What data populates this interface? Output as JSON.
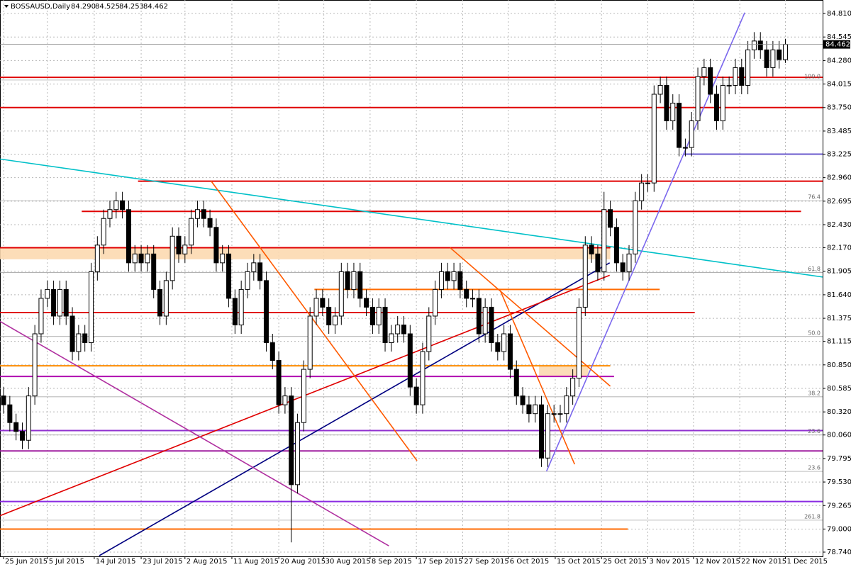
{
  "chart_data": {
    "type": "candlestick",
    "title": "BOSSAUSD,Daily",
    "open": [
      80.5,
      80.4,
      80.2,
      80.1,
      80.0,
      80.5,
      81.2,
      81.6,
      81.7,
      81.4,
      81.7,
      81.4,
      81.0,
      81.2,
      81.1,
      81.9,
      82.2,
      82.5,
      82.6,
      82.7,
      82.6,
      82.0,
      82.1,
      82.0,
      82.1,
      81.7,
      81.4,
      81.8,
      82.3,
      82.1,
      82.2,
      82.5,
      82.6,
      82.5,
      82.4,
      82.0,
      82.1,
      81.6,
      81.3,
      81.7,
      81.9,
      82.0,
      81.8,
      81.1,
      80.9,
      80.4,
      80.5,
      79.5,
      80.2,
      80.8,
      81.4,
      81.6,
      81.5,
      81.3,
      81.4,
      81.9,
      81.7,
      81.9,
      81.6,
      81.5,
      81.3,
      81.5,
      81.1,
      81.2,
      81.3,
      81.2,
      80.6,
      80.4,
      81.0,
      81.4,
      81.7,
      81.9,
      81.8,
      81.9,
      81.7,
      81.6,
      81.6,
      81.2,
      81.5,
      81.1,
      81.0,
      81.2,
      80.8,
      80.5,
      80.4,
      80.3,
      80.4,
      79.8,
      80.3,
      80.3,
      80.3,
      80.5,
      80.7,
      81.5,
      82.2,
      82.1,
      81.9,
      82.6,
      82.4,
      82.0,
      81.9,
      82.1,
      82.7,
      82.9,
      82.9,
      83.9,
      84.0,
      83.6,
      83.8,
      83.3,
      83.3,
      83.6,
      84.1,
      84.2,
      83.9,
      83.6,
      84.0,
      84.0,
      84.2,
      84.0,
      84.4,
      84.5,
      84.4,
      84.2,
      84.4,
      84.29
    ],
    "high": [
      80.6,
      80.5,
      80.3,
      80.2,
      80.6,
      81.3,
      81.7,
      81.8,
      81.8,
      81.8,
      81.8,
      81.5,
      81.3,
      81.3,
      82.0,
      82.3,
      82.6,
      82.7,
      82.8,
      82.8,
      82.7,
      82.2,
      82.2,
      82.2,
      82.2,
      81.8,
      81.9,
      82.4,
      82.4,
      82.3,
      82.6,
      82.7,
      82.7,
      82.6,
      82.5,
      82.2,
      82.2,
      81.7,
      81.8,
      82.0,
      82.1,
      82.1,
      81.9,
      81.2,
      81.0,
      80.6,
      80.6,
      80.3,
      80.9,
      81.5,
      81.7,
      81.7,
      81.6,
      81.5,
      82.0,
      82.0,
      82.0,
      82.0,
      81.7,
      81.6,
      81.6,
      81.6,
      81.3,
      81.4,
      81.4,
      81.3,
      80.7,
      81.1,
      81.5,
      81.8,
      82.0,
      82.0,
      82.0,
      82.0,
      81.8,
      81.7,
      81.7,
      81.6,
      81.6,
      81.2,
      81.3,
      81.3,
      80.9,
      80.6,
      80.5,
      80.5,
      80.5,
      80.4,
      80.4,
      80.4,
      80.6,
      80.8,
      81.6,
      82.3,
      82.3,
      82.2,
      82.8,
      82.7,
      82.5,
      82.1,
      82.2,
      82.8,
      83.0,
      83.0,
      84.0,
      84.1,
      84.1,
      83.9,
      83.9,
      83.4,
      83.7,
      84.2,
      84.3,
      84.3,
      84.0,
      84.1,
      84.1,
      84.3,
      84.3,
      84.5,
      84.6,
      84.6,
      84.5,
      84.5,
      84.5,
      84.525
    ],
    "low": [
      80.3,
      80.1,
      80.0,
      79.9,
      79.9,
      80.4,
      81.1,
      81.5,
      81.3,
      81.3,
      81.3,
      80.9,
      80.9,
      81.0,
      81.0,
      81.8,
      82.1,
      82.4,
      82.5,
      82.5,
      81.9,
      81.9,
      81.9,
      81.9,
      81.6,
      81.3,
      81.3,
      81.7,
      82.0,
      82.0,
      82.1,
      82.4,
      82.4,
      82.3,
      81.9,
      81.9,
      81.5,
      81.2,
      81.2,
      81.6,
      81.8,
      81.7,
      81.0,
      80.8,
      80.3,
      80.3,
      78.85,
      79.4,
      80.1,
      80.7,
      81.3,
      81.4,
      81.2,
      81.2,
      81.3,
      81.6,
      81.6,
      81.5,
      81.4,
      81.2,
      81.2,
      81.0,
      81.0,
      81.1,
      81.1,
      80.5,
      80.3,
      80.3,
      80.9,
      81.3,
      81.6,
      81.7,
      81.7,
      81.6,
      81.5,
      81.5,
      81.1,
      81.1,
      81.0,
      80.9,
      80.9,
      80.7,
      80.4,
      80.3,
      80.2,
      80.2,
      79.7,
      79.7,
      80.2,
      80.2,
      80.2,
      80.4,
      80.6,
      81.4,
      82.0,
      81.8,
      81.8,
      82.3,
      81.9,
      81.8,
      81.8,
      82.0,
      82.6,
      82.8,
      82.8,
      83.8,
      83.5,
      83.5,
      83.2,
      83.2,
      83.2,
      83.5,
      84.0,
      83.8,
      83.5,
      83.5,
      83.9,
      83.9,
      83.9,
      83.9,
      84.3,
      84.3,
      84.1,
      84.1,
      84.19,
      84.253
    ],
    "close": [
      80.4,
      80.2,
      80.1,
      80.0,
      80.5,
      81.2,
      81.6,
      81.7,
      81.4,
      81.7,
      81.4,
      81.0,
      81.2,
      81.1,
      81.9,
      82.2,
      82.5,
      82.6,
      82.7,
      82.6,
      82.0,
      82.1,
      82.0,
      82.1,
      81.7,
      81.4,
      81.8,
      82.3,
      82.1,
      82.2,
      82.5,
      82.6,
      82.5,
      82.4,
      82.0,
      82.1,
      81.6,
      81.3,
      81.7,
      81.9,
      82.0,
      81.8,
      81.1,
      80.9,
      80.4,
      80.5,
      79.5,
      80.2,
      80.8,
      81.4,
      81.6,
      81.5,
      81.3,
      81.4,
      81.9,
      81.7,
      81.9,
      81.6,
      81.5,
      81.3,
      81.5,
      81.1,
      81.2,
      81.3,
      81.2,
      80.6,
      80.4,
      81.0,
      81.4,
      81.7,
      81.9,
      81.8,
      81.9,
      81.7,
      81.6,
      81.6,
      81.2,
      81.5,
      81.1,
      81.0,
      81.2,
      80.8,
      80.5,
      80.4,
      80.3,
      80.4,
      79.8,
      80.3,
      80.3,
      80.3,
      80.5,
      80.7,
      81.5,
      82.2,
      82.1,
      81.9,
      82.6,
      82.4,
      82.0,
      81.9,
      82.1,
      82.7,
      82.9,
      82.9,
      83.9,
      84.0,
      83.6,
      83.8,
      83.3,
      83.3,
      83.6,
      84.1,
      84.2,
      83.9,
      83.6,
      84.0,
      84.0,
      84.2,
      84.0,
      84.4,
      84.5,
      84.4,
      84.2,
      84.4,
      84.29,
      84.462
    ],
    "ohlc_labels": [
      "84.290",
      "84.525",
      "84.253",
      "84.462"
    ],
    "xlim": [
      -0.57,
      130.95
    ],
    "ylim": [
      78.692,
      84.962
    ],
    "grid": true,
    "xticks": [
      {
        "value": 0,
        "label": "25 Jun 2015"
      },
      {
        "value": 7,
        "label": "5 Jul 2015"
      },
      {
        "value": 14.5,
        "label": "14 Jul 2015"
      },
      {
        "value": 22,
        "label": "23 Jul 2015"
      },
      {
        "value": 29,
        "label": "2 Aug 2015"
      },
      {
        "value": 36.5,
        "label": "11 Aug 2015"
      },
      {
        "value": 44,
        "label": "20 Aug 2015"
      },
      {
        "value": 51.2,
        "label": "30 Aug 2015"
      },
      {
        "value": 58.6,
        "label": "8 Sep 2015"
      },
      {
        "value": 66,
        "label": "17 Sep 2015"
      },
      {
        "value": 73.4,
        "label": "27 Sep 2015"
      },
      {
        "value": 80.7,
        "label": "6 Oct 2015"
      },
      {
        "value": 88.2,
        "label": "15 Oct 2015"
      },
      {
        "value": 95.6,
        "label": "25 Oct 2015"
      },
      {
        "value": 103,
        "label": "3 Nov 2015"
      },
      {
        "value": 110.3,
        "label": "12 Nov 2015"
      },
      {
        "value": 117.7,
        "label": "22 Nov 2015"
      },
      {
        "value": 125,
        "label": "1 Dec 2015"
      }
    ],
    "yticks": [
      {
        "value": 84.81,
        "label": "84.810"
      },
      84.545,
      {
        "value": 84.28,
        "label": "84.280"
      },
      84.015,
      {
        "value": 83.75,
        "label": "83.750"
      },
      83.485,
      83.225,
      {
        "value": 82.96,
        "label": "82.960"
      },
      82.695,
      {
        "value": 82.43,
        "label": "82.430"
      },
      {
        "value": 82.17,
        "label": "82.170"
      },
      81.905,
      {
        "value": 81.64,
        "label": "81.640"
      },
      81.375,
      81.115,
      {
        "value": 80.85,
        "label": "80.850"
      },
      80.585,
      {
        "value": 80.32,
        "label": "80.320"
      },
      {
        "value": 80.06,
        "label": "80.060"
      },
      79.795,
      {
        "value": 79.53,
        "label": "79.530"
      },
      79.265,
      {
        "value": 79.0,
        "label": "79.000"
      },
      {
        "value": 78.74,
        "label": "78.740"
      }
    ],
    "levels": [
      {
        "price": 84.09,
        "from": -0.57,
        "to": 130.95,
        "color": "#e00000"
      },
      {
        "price": 83.75,
        "from": -0.57,
        "to": 130.95,
        "color": "#e00000"
      },
      {
        "price": 82.92,
        "from": 21.5,
        "to": 130.95,
        "color": "#e00000"
      },
      {
        "price": 82.58,
        "from": 12.5,
        "to": 127.5,
        "color": "#e00000"
      },
      {
        "price": 82.17,
        "from": -0.57,
        "to": 97,
        "color": "#e00000"
      },
      {
        "price": 81.44,
        "from": -0.57,
        "to": 110.5,
        "color": "#e00000"
      },
      {
        "price": 81.7,
        "from": 49.7,
        "to": 104.9,
        "color": "#ff6a00"
      },
      {
        "price": 80.84,
        "from": -0.57,
        "to": 97,
        "color": "#ff8c00"
      },
      {
        "price": 80.72,
        "from": -0.57,
        "to": 97.6,
        "color": "#b000b0"
      },
      {
        "price": 80.11,
        "from": -0.57,
        "to": 130.95,
        "color": "#9030d0"
      },
      {
        "price": 79.88,
        "from": -0.57,
        "to": 130.95,
        "color": "#a020a0"
      },
      {
        "price": 79.31,
        "from": -0.57,
        "to": 130.95,
        "color": "#8a2be2"
      },
      {
        "price": 79.0,
        "from": -0.57,
        "to": 99.8,
        "color": "#ff6a00"
      },
      {
        "price": 83.225,
        "from": 108.8,
        "to": 130.95,
        "color": "#6a5acd"
      }
    ],
    "bands": [
      {
        "from_price": 82.04,
        "to_price": 82.17,
        "from": -0.57,
        "to": 97,
        "color": "#fcd9b0"
      },
      {
        "from_price": 80.72,
        "to_price": 80.84,
        "from": 85.6,
        "to": 93.5,
        "color": "#fcd9b0"
      }
    ],
    "lines": [
      {
        "x": [
          -0.57,
          130.95
        ],
        "y": [
          83.17,
          81.84
        ],
        "color": "#00c0c8"
      },
      {
        "x": [
          86.8,
          118.5
        ],
        "y": [
          79.65,
          84.82
        ],
        "color": "#7b68ee"
      },
      {
        "x": [
          15.3,
          96.9
        ],
        "y": [
          78.7,
          82.0
        ],
        "color": "#000080"
      },
      {
        "x": [
          -0.57,
          96.9
        ],
        "y": [
          79.15,
          81.86
        ],
        "color": "#e00000"
      },
      {
        "x": [
          33.2,
          66.1
        ],
        "y": [
          82.92,
          79.77
        ],
        "color": "#ff5a00"
      },
      {
        "x": [
          71.4,
          97
        ],
        "y": [
          82.17,
          80.61
        ],
        "color": "#ff5a00"
      },
      {
        "x": [
          -0.57,
          61.6
        ],
        "y": [
          81.34,
          78.81
        ],
        "color": "#b030a0"
      },
      {
        "x": [
          79.4,
          91.3
        ],
        "y": [
          81.69,
          79.73
        ],
        "color": "#ff5a00"
      }
    ],
    "fib_labels": [
      {
        "price": 84.06,
        "label": "100.0"
      },
      {
        "price": 82.7,
        "label": "76.4"
      },
      {
        "price": 81.89,
        "label": "61.8"
      },
      {
        "price": 81.17,
        "label": "50.0"
      },
      {
        "price": 80.49,
        "label": "38.2"
      },
      {
        "price": 80.06,
        "label": "23.6"
      },
      {
        "price": 79.65,
        "label": "23.6"
      },
      {
        "price": 79.1,
        "label": "261.8"
      }
    ]
  }
}
